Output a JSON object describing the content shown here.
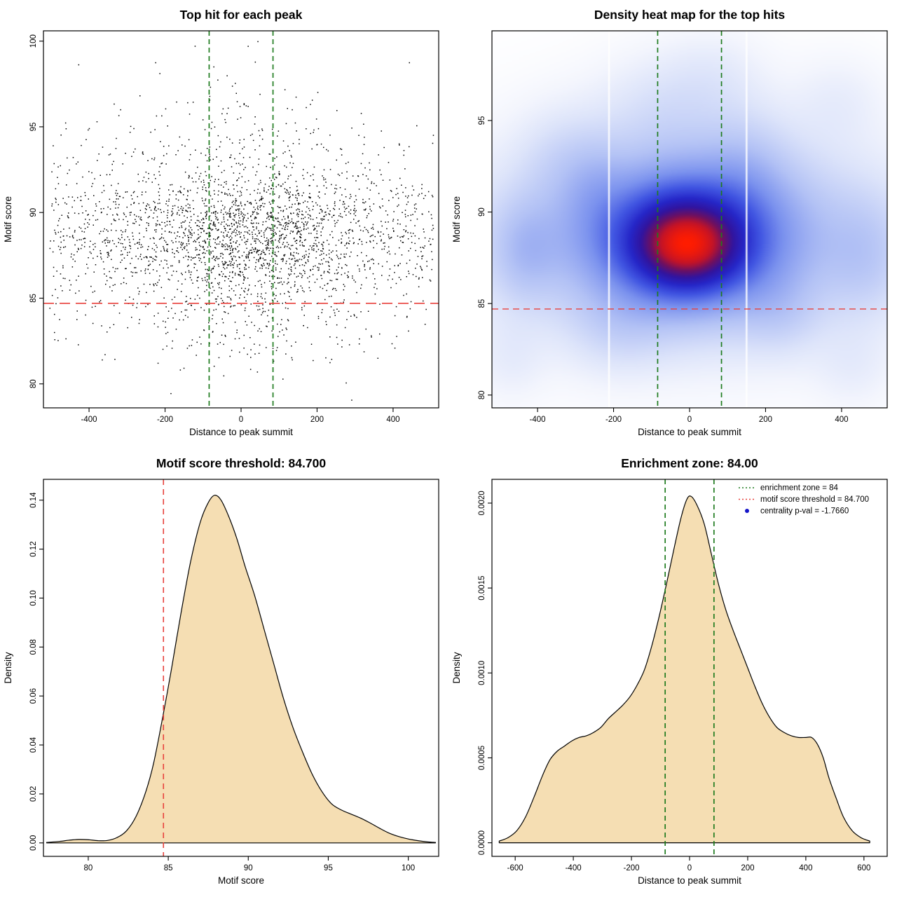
{
  "figure": {
    "background": "#ffffff",
    "accent_green": "#1e7b1e",
    "accent_red": "#e8413c",
    "legend_blue": "#1414c8"
  },
  "chart_data": [
    {
      "type": "scatter",
      "title": "Top hit for each peak",
      "xlabel": "Distance to peak summit",
      "ylabel": "Motif score",
      "xlim": [
        -520,
        520
      ],
      "ylim": [
        78.6,
        100.6
      ],
      "xticks": [
        -400,
        -200,
        0,
        200,
        400
      ],
      "xtick_labels": [
        "-400",
        "-200",
        "0",
        "200",
        "400"
      ],
      "yticks": [
        80,
        85,
        90,
        95,
        100
      ],
      "ytick_labels": [
        "80",
        "85",
        "90",
        "95",
        "100"
      ],
      "point_color": "#000000",
      "point_size": 1.5,
      "n_points": 3000,
      "seed": 1337,
      "x_mixture": [
        {
          "w": 0.5,
          "type": "normal",
          "mean": 25,
          "sd": 155
        },
        {
          "w": 0.5,
          "type": "uniform",
          "min": -505,
          "max": 505
        }
      ],
      "y_mixture": [
        {
          "w": 0.78,
          "type": "normal",
          "mean": 88.6,
          "sd": 2.0
        },
        {
          "w": 0.12,
          "type": "normal",
          "mean": 92.5,
          "sd": 2.6
        },
        {
          "w": 0.1,
          "type": "normal",
          "mean": 83.8,
          "sd": 1.9
        }
      ],
      "y_clamp": [
        79.0,
        100.3
      ],
      "vlines": [
        {
          "x": -84,
          "color": "#1e7b1e",
          "dash": "7,5",
          "width": 1.7
        },
        {
          "x": 84,
          "color": "#1e7b1e",
          "dash": "7,5",
          "width": 1.7
        }
      ],
      "hlines": [
        {
          "y": 84.7,
          "color": "#e8413c",
          "dash": "15,8",
          "width": 1.7
        }
      ]
    },
    {
      "type": "heatmap",
      "title": "Density heat map for the top hits",
      "xlabel": "Distance to peak summit",
      "ylabel": "Motif score",
      "xlim": [
        -520,
        520
      ],
      "ylim": [
        79.3,
        99.9
      ],
      "xticks": [
        -400,
        -200,
        0,
        200,
        400
      ],
      "xtick_labels": [
        "-400",
        "-200",
        "0",
        "200",
        "400"
      ],
      "yticks": [
        80,
        85,
        90,
        95
      ],
      "ytick_labels": [
        "80",
        "85",
        "90",
        "95"
      ],
      "gamma": 0.62,
      "components": [
        {
          "x": -8,
          "y": 88.2,
          "sx": 95,
          "sy": 1.6,
          "w": 1.0
        },
        {
          "x": -5,
          "y": 88.6,
          "sx": 170,
          "sy": 2.6,
          "w": 0.6
        },
        {
          "x": 0,
          "y": 88.6,
          "sx": 330,
          "sy": 3.4,
          "w": 0.38
        },
        {
          "x": -435,
          "y": 87.9,
          "sx": 62,
          "sy": 1.9,
          "w": 0.17
        },
        {
          "x": 465,
          "y": 87.6,
          "sx": 70,
          "sy": 2.2,
          "w": 0.13
        },
        {
          "x": -255,
          "y": 91.6,
          "sx": 60,
          "sy": 2.0,
          "w": 0.1
        },
        {
          "x": 150,
          "y": 92.6,
          "sx": 80,
          "sy": 2.2,
          "w": 0.1
        },
        {
          "x": -60,
          "y": 95.6,
          "sx": 120,
          "sy": 1.9,
          "w": 0.09
        },
        {
          "x": 60,
          "y": 97.6,
          "sx": 90,
          "sy": 1.5,
          "w": 0.05
        },
        {
          "x": 240,
          "y": 84.4,
          "sx": 70,
          "sy": 1.5,
          "w": 0.09
        },
        {
          "x": -185,
          "y": 83.6,
          "sx": 90,
          "sy": 1.6,
          "w": 0.09
        },
        {
          "x": -470,
          "y": 82.0,
          "sx": 60,
          "sy": 1.5,
          "w": 0.05
        },
        {
          "x": 430,
          "y": 81.6,
          "sx": 70,
          "sy": 1.5,
          "w": 0.05
        },
        {
          "x": -350,
          "y": 93.0,
          "sx": 70,
          "sy": 1.8,
          "w": 0.07
        },
        {
          "x": 390,
          "y": 96.0,
          "sx": 80,
          "sy": 1.6,
          "w": 0.05
        }
      ],
      "color_stops": [
        [
          0.0,
          "#ffffff"
        ],
        [
          0.07,
          "#f3f5fd"
        ],
        [
          0.16,
          "#dde4fa"
        ],
        [
          0.3,
          "#b3c2f5"
        ],
        [
          0.44,
          "#7b92ee"
        ],
        [
          0.56,
          "#4156e2"
        ],
        [
          0.67,
          "#2526c8"
        ],
        [
          0.76,
          "#31149f"
        ],
        [
          0.84,
          "#6e1060"
        ],
        [
          0.91,
          "#c31327"
        ],
        [
          1.0,
          "#ff1c00"
        ]
      ],
      "white_gaps": [
        -212,
        150
      ],
      "vlines": [
        {
          "x": -84,
          "color": "#1e7b1e",
          "dash": "7,5",
          "width": 1.7
        },
        {
          "x": 84,
          "color": "#1e7b1e",
          "dash": "7,5",
          "width": 1.7
        }
      ],
      "hlines": [
        {
          "y": 84.7,
          "color": "#e8413c",
          "dash": "9,6",
          "width": 1.4
        }
      ]
    },
    {
      "type": "density",
      "title": "Motif score threshold: 84.700",
      "xlabel": "Motif score",
      "ylabel": "Density",
      "xlim": [
        77.2,
        101.9
      ],
      "ylim": [
        -0.0055,
        0.1485
      ],
      "xticks": [
        80,
        85,
        90,
        95,
        100
      ],
      "xtick_labels": [
        "80",
        "85",
        "90",
        "95",
        "100"
      ],
      "yticks": [
        0,
        0.02,
        0.04,
        0.06,
        0.08,
        0.1,
        0.12,
        0.14
      ],
      "ytick_labels": [
        "0.00",
        "0.02",
        "0.04",
        "0.06",
        "0.08",
        "0.10",
        "0.12",
        "0.14"
      ],
      "fill": "#f5deb3",
      "stroke": "#000000",
      "points": [
        [
          77.4,
          0.0002
        ],
        [
          78.2,
          0.0006
        ],
        [
          78.8,
          0.0011
        ],
        [
          79.4,
          0.0014
        ],
        [
          80.0,
          0.0013
        ],
        [
          80.6,
          0.0009
        ],
        [
          81.2,
          0.001
        ],
        [
          81.8,
          0.0022
        ],
        [
          82.4,
          0.005
        ],
        [
          83.0,
          0.011
        ],
        [
          83.6,
          0.021
        ],
        [
          84.1,
          0.033
        ],
        [
          84.7,
          0.053
        ],
        [
          85.2,
          0.071
        ],
        [
          85.8,
          0.094
        ],
        [
          86.4,
          0.115
        ],
        [
          87.0,
          0.131
        ],
        [
          87.5,
          0.139
        ],
        [
          87.9,
          0.142
        ],
        [
          88.3,
          0.14
        ],
        [
          88.8,
          0.133
        ],
        [
          89.3,
          0.124
        ],
        [
          89.8,
          0.113
        ],
        [
          90.4,
          0.101
        ],
        [
          91.0,
          0.087
        ],
        [
          91.6,
          0.073
        ],
        [
          92.2,
          0.059
        ],
        [
          92.8,
          0.047
        ],
        [
          93.4,
          0.037
        ],
        [
          94.0,
          0.028
        ],
        [
          94.6,
          0.021
        ],
        [
          95.2,
          0.016
        ],
        [
          95.8,
          0.0135
        ],
        [
          96.4,
          0.0118
        ],
        [
          97.0,
          0.0102
        ],
        [
          97.6,
          0.0082
        ],
        [
          98.2,
          0.006
        ],
        [
          98.8,
          0.004
        ],
        [
          99.4,
          0.0026
        ],
        [
          100.0,
          0.0016
        ],
        [
          100.6,
          0.0009
        ],
        [
          101.2,
          0.0004
        ],
        [
          101.7,
          0.0002
        ]
      ],
      "vlines": [
        {
          "x": 84.7,
          "color": "#e8413c",
          "dash": "8,6",
          "width": 1.6
        }
      ]
    },
    {
      "type": "density",
      "title": "Enrichment zone: 84.00",
      "xlabel": "Distance to peak summit",
      "ylabel": "Density",
      "xlim": [
        -680,
        680
      ],
      "ylim": [
        -8e-05,
        0.00214
      ],
      "xticks": [
        -600,
        -400,
        -200,
        0,
        200,
        400,
        600
      ],
      "xtick_labels": [
        "-600",
        "-400",
        "-200",
        "0",
        "200",
        "400",
        "600"
      ],
      "yticks": [
        0,
        0.0005,
        0.001,
        0.0015,
        0.002
      ],
      "ytick_labels": [
        "0.0000",
        "0.0005",
        "0.0010",
        "0.0015",
        "0.0020"
      ],
      "fill": "#f5deb3",
      "stroke": "#000000",
      "points": [
        [
          -655,
          1e-05
        ],
        [
          -625,
          3e-05
        ],
        [
          -595,
          7e-05
        ],
        [
          -565,
          0.00015
        ],
        [
          -535,
          0.00027
        ],
        [
          -505,
          0.0004
        ],
        [
          -480,
          0.00049
        ],
        [
          -455,
          0.00054
        ],
        [
          -430,
          0.00057
        ],
        [
          -405,
          0.0006
        ],
        [
          -380,
          0.00062
        ],
        [
          -355,
          0.00063
        ],
        [
          -330,
          0.00065
        ],
        [
          -305,
          0.00068
        ],
        [
          -280,
          0.00073
        ],
        [
          -255,
          0.00077
        ],
        [
          -230,
          0.00081
        ],
        [
          -205,
          0.00086
        ],
        [
          -180,
          0.00093
        ],
        [
          -155,
          0.00102
        ],
        [
          -130,
          0.00116
        ],
        [
          -105,
          0.00133
        ],
        [
          -80,
          0.00152
        ],
        [
          -55,
          0.00172
        ],
        [
          -30,
          0.00191
        ],
        [
          -10,
          0.00202
        ],
        [
          5,
          0.00204
        ],
        [
          25,
          0.00199
        ],
        [
          50,
          0.00188
        ],
        [
          75,
          0.0017
        ],
        [
          100,
          0.00152
        ],
        [
          125,
          0.00137
        ],
        [
          150,
          0.00125
        ],
        [
          175,
          0.00114
        ],
        [
          200,
          0.00103
        ],
        [
          225,
          0.00092
        ],
        [
          250,
          0.00082
        ],
        [
          275,
          0.00074
        ],
        [
          300,
          0.00068
        ],
        [
          325,
          0.00065
        ],
        [
          350,
          0.00063
        ],
        [
          375,
          0.00062
        ],
        [
          400,
          0.00062
        ],
        [
          420,
          0.00062
        ],
        [
          440,
          0.00058
        ],
        [
          460,
          0.0005
        ],
        [
          480,
          0.00038
        ],
        [
          505,
          0.00026
        ],
        [
          530,
          0.00015
        ],
        [
          560,
          7e-05
        ],
        [
          590,
          3e-05
        ],
        [
          620,
          1e-05
        ]
      ],
      "vlines": [
        {
          "x": -84,
          "color": "#1e7b1e",
          "dash": "7,5",
          "width": 1.7
        },
        {
          "x": 84,
          "color": "#1e7b1e",
          "dash": "7,5",
          "width": 1.7
        }
      ],
      "legend": {
        "entries": [
          {
            "label": "enrichment zone = 84",
            "symbol": "line",
            "color": "#1e7b1e",
            "dash": "2,3"
          },
          {
            "label": "motif score threshold = 84.700",
            "symbol": "line",
            "color": "#e8413c",
            "dash": "2,3"
          },
          {
            "label": "centrality p-val = -1.7660",
            "symbol": "point",
            "color": "#1414c8"
          }
        ]
      }
    }
  ]
}
